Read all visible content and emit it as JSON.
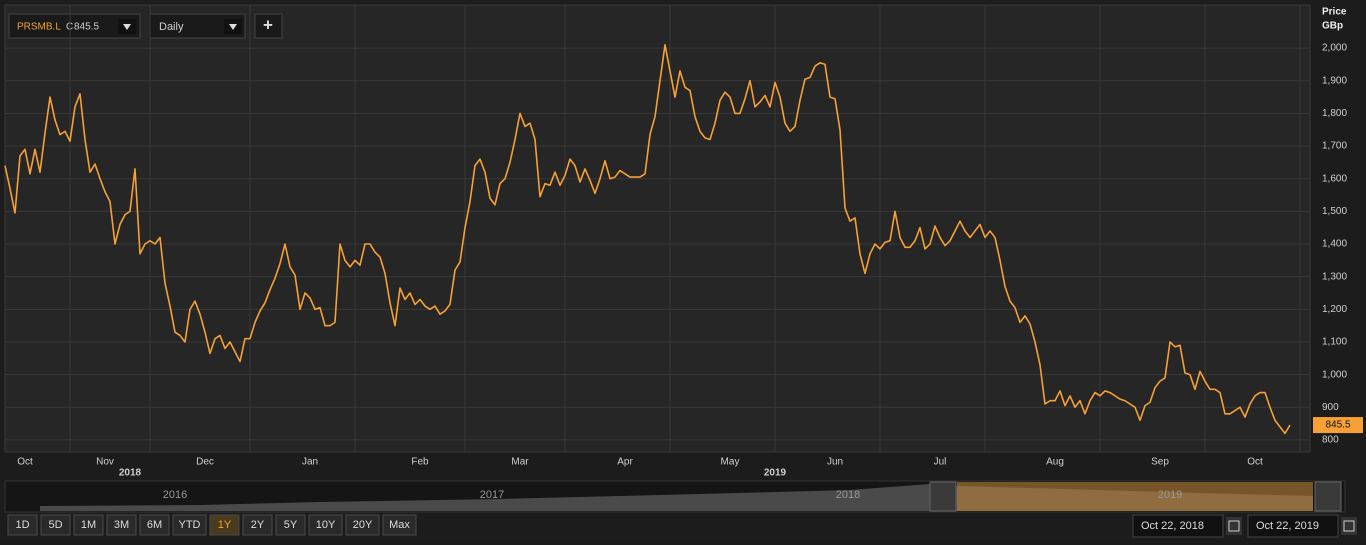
{
  "toolbar": {
    "symbol": "PRSMB.L",
    "close_prefix": "C",
    "interval": "Daily",
    "add": "+"
  },
  "axis_unit": {
    "line1": "Price",
    "line2": "GBp"
  },
  "navigator": {
    "years": [
      "2016",
      "2017",
      "2018",
      "2019"
    ]
  },
  "ranges": [
    "1D",
    "5D",
    "1M",
    "3M",
    "6M",
    "YTD",
    "1Y",
    "2Y",
    "5Y",
    "10Y",
    "20Y",
    "Max"
  ],
  "selected_range": "1Y",
  "date_from": "Oct 22, 2018",
  "date_to": "Oct 22, 2019",
  "chart_data": {
    "type": "line",
    "color": "#f7a035",
    "grid": true,
    "xlim": [
      0,
      261
    ],
    "ylim": [
      763,
      2132
    ],
    "xticks": [
      {
        "value": 4,
        "label": "Oct"
      },
      {
        "value": 20,
        "label": "Nov"
      },
      {
        "value": 40,
        "label": "Dec"
      },
      {
        "value": 61,
        "label": "Jan"
      },
      {
        "value": 83,
        "label": "Feb"
      },
      {
        "value": 103,
        "label": "Mar"
      },
      {
        "value": 124,
        "label": "Apr"
      },
      {
        "value": 145,
        "label": "May"
      },
      {
        "value": 166,
        "label": "Jun"
      },
      {
        "value": 187,
        "label": "Jul"
      },
      {
        "value": 210,
        "label": "Aug"
      },
      {
        "value": 231,
        "label": "Sep"
      },
      {
        "value": 250,
        "label": "Oct"
      }
    ],
    "year_labels": [
      {
        "value": 25,
        "label": "2018"
      },
      {
        "value": 154,
        "label": "2019"
      }
    ],
    "yticks": [
      800,
      900,
      {
        "value": 1000,
        "label": "1,000"
      },
      {
        "value": 1100,
        "label": "1,100"
      },
      {
        "value": 1200,
        "label": "1,200"
      },
      {
        "value": 1300,
        "label": "1,300"
      },
      {
        "value": 1400,
        "label": "1,400"
      },
      {
        "value": 1500,
        "label": "1,500"
      },
      {
        "value": 1600,
        "label": "1,600"
      },
      {
        "value": 1700,
        "label": "1,700"
      },
      {
        "value": 1800,
        "label": "1,800"
      },
      {
        "value": 1900,
        "label": "1,900"
      },
      {
        "value": 2000,
        "label": "2,000"
      }
    ],
    "values": [
      1640,
      1570,
      1495,
      1670,
      1690,
      1615,
      1690,
      1620,
      1740,
      1850,
      1780,
      1735,
      1745,
      1715,
      1820,
      1860,
      1720,
      1620,
      1645,
      1600,
      1560,
      1530,
      1400,
      1460,
      1490,
      1500,
      1630,
      1370,
      1400,
      1410,
      1400,
      1420,
      1280,
      1210,
      1130,
      1120,
      1100,
      1200,
      1225,
      1185,
      1130,
      1065,
      1110,
      1120,
      1080,
      1100,
      1070,
      1040,
      1110,
      1110,
      1160,
      1195,
      1220,
      1260,
      1295,
      1340,
      1400,
      1330,
      1305,
      1200,
      1250,
      1235,
      1200,
      1205,
      1150,
      1150,
      1160,
      1400,
      1350,
      1330,
      1350,
      1335,
      1400,
      1400,
      1375,
      1360,
      1310,
      1220,
      1150,
      1265,
      1230,
      1250,
      1215,
      1230,
      1210,
      1200,
      1210,
      1185,
      1195,
      1215,
      1320,
      1345,
      1450,
      1530,
      1640,
      1660,
      1620,
      1540,
      1520,
      1585,
      1600,
      1650,
      1720,
      1800,
      1760,
      1770,
      1720,
      1545,
      1585,
      1580,
      1620,
      1580,
      1610,
      1660,
      1640,
      1590,
      1630,
      1595,
      1555,
      1600,
      1655,
      1600,
      1605,
      1625,
      1615,
      1605,
      1605,
      1605,
      1615,
      1735,
      1790,
      1900,
      2010,
      1930,
      1850,
      1930,
      1880,
      1870,
      1790,
      1745,
      1725,
      1720,
      1770,
      1840,
      1865,
      1850,
      1800,
      1800,
      1845,
      1900,
      1820,
      1835,
      1855,
      1820,
      1895,
      1850,
      1770,
      1745,
      1760,
      1840,
      1905,
      1910,
      1945,
      1955,
      1950,
      1850,
      1845,
      1750,
      1510,
      1470,
      1480,
      1370,
      1310,
      1370,
      1400,
      1385,
      1405,
      1410,
      1500,
      1420,
      1390,
      1390,
      1410,
      1450,
      1385,
      1400,
      1455,
      1420,
      1395,
      1410,
      1440,
      1470,
      1440,
      1420,
      1440,
      1460,
      1420,
      1440,
      1420,
      1350,
      1270,
      1225,
      1205,
      1160,
      1180,
      1155,
      1100,
      1030,
      910,
      920,
      920,
      950,
      905,
      935,
      900,
      920,
      880,
      920,
      945,
      935,
      950,
      945,
      935,
      925,
      920,
      910,
      900,
      860,
      905,
      915,
      960,
      980,
      990,
      1100,
      1085,
      1090,
      1005,
      1000,
      955,
      1010,
      980,
      955,
      955,
      945,
      880,
      880,
      890,
      900,
      870,
      910,
      935,
      945,
      945,
      900,
      860,
      840,
      820,
      845.5
    ]
  }
}
